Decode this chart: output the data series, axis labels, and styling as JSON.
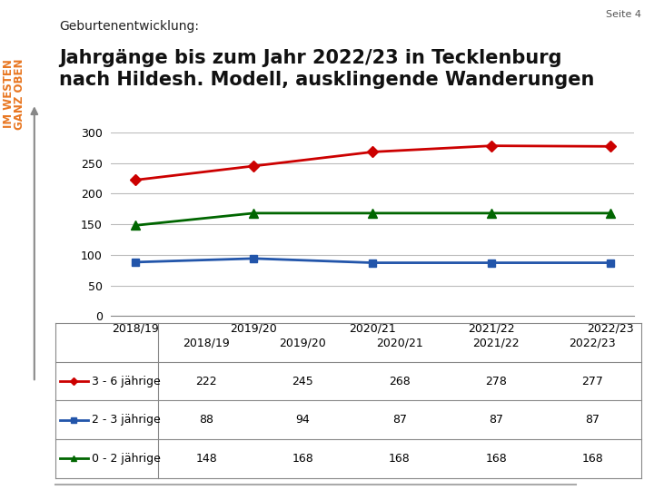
{
  "title_small": "Geburtenentwicklung:",
  "title_large": "Jahrgänge bis zum Jahr 2022/23 in Tecklenburg\nnach Hildesh. Modell, ausklingende Wanderungen",
  "page_label": "Seite 4",
  "sidebar_lines": [
    "IM WESTEN",
    "GANZ OBEN"
  ],
  "sidebar_color": "#E87722",
  "categories": [
    "2018/19",
    "2019/20",
    "2020/21",
    "2021/22",
    "2022/23"
  ],
  "series": [
    {
      "label": "3 - 6 jährige",
      "values": [
        222,
        245,
        268,
        278,
        277
      ],
      "color": "#CC0000",
      "marker": "D",
      "markersize": 6
    },
    {
      "label": "2 - 3 jährige",
      "values": [
        88,
        94,
        87,
        87,
        87
      ],
      "color": "#2255AA",
      "marker": "s",
      "markersize": 6
    },
    {
      "label": "0 - 2 jährige",
      "values": [
        148,
        168,
        168,
        168,
        168
      ],
      "color": "#006600",
      "marker": "^",
      "markersize": 7
    }
  ],
  "ylim": [
    0,
    300
  ],
  "yticks": [
    0,
    50,
    100,
    150,
    200,
    250,
    300
  ],
  "background_color": "#ffffff",
  "plot_bg_color": "#ffffff",
  "grid_color": "#bbbbbb",
  "title_large_fontsize": 15,
  "title_small_fontsize": 10,
  "axis_fontsize": 9,
  "table_fontsize": 9
}
